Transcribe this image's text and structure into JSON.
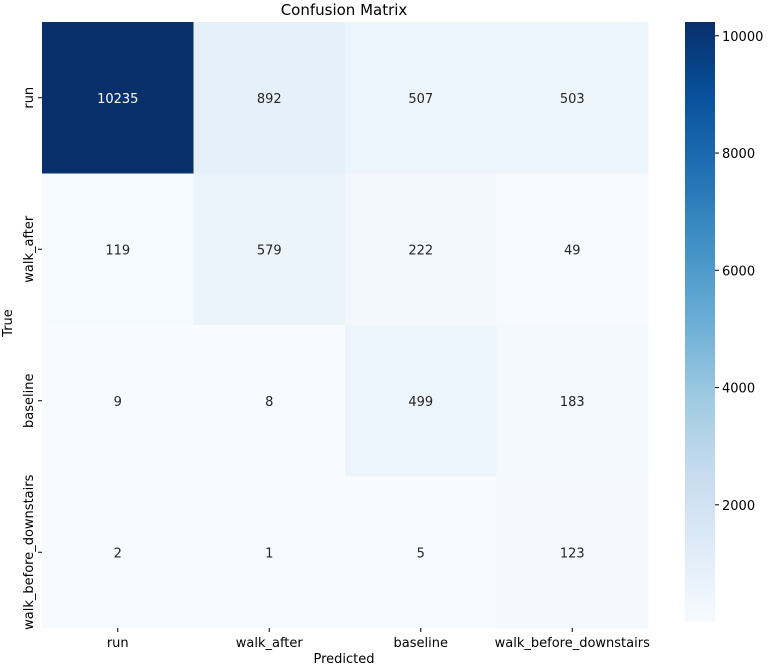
{
  "chart_data": {
    "type": "heatmap",
    "title": "Confusion Matrix",
    "xlabel": "Predicted",
    "ylabel": "True",
    "x_categories": [
      "run",
      "walk_after",
      "baseline",
      "walk_before_downstairs"
    ],
    "y_categories": [
      "run",
      "walk_after",
      "baseline",
      "walk_before_downstairs"
    ],
    "values": [
      [
        10235,
        892,
        507,
        503
      ],
      [
        119,
        579,
        222,
        49
      ],
      [
        9,
        8,
        499,
        183
      ],
      [
        2,
        1,
        5,
        123
      ]
    ],
    "colormap": "Blues",
    "vmin": 1,
    "vmax": 10235,
    "colorbar_ticks": [
      2000,
      4000,
      6000,
      8000,
      10000
    ]
  }
}
